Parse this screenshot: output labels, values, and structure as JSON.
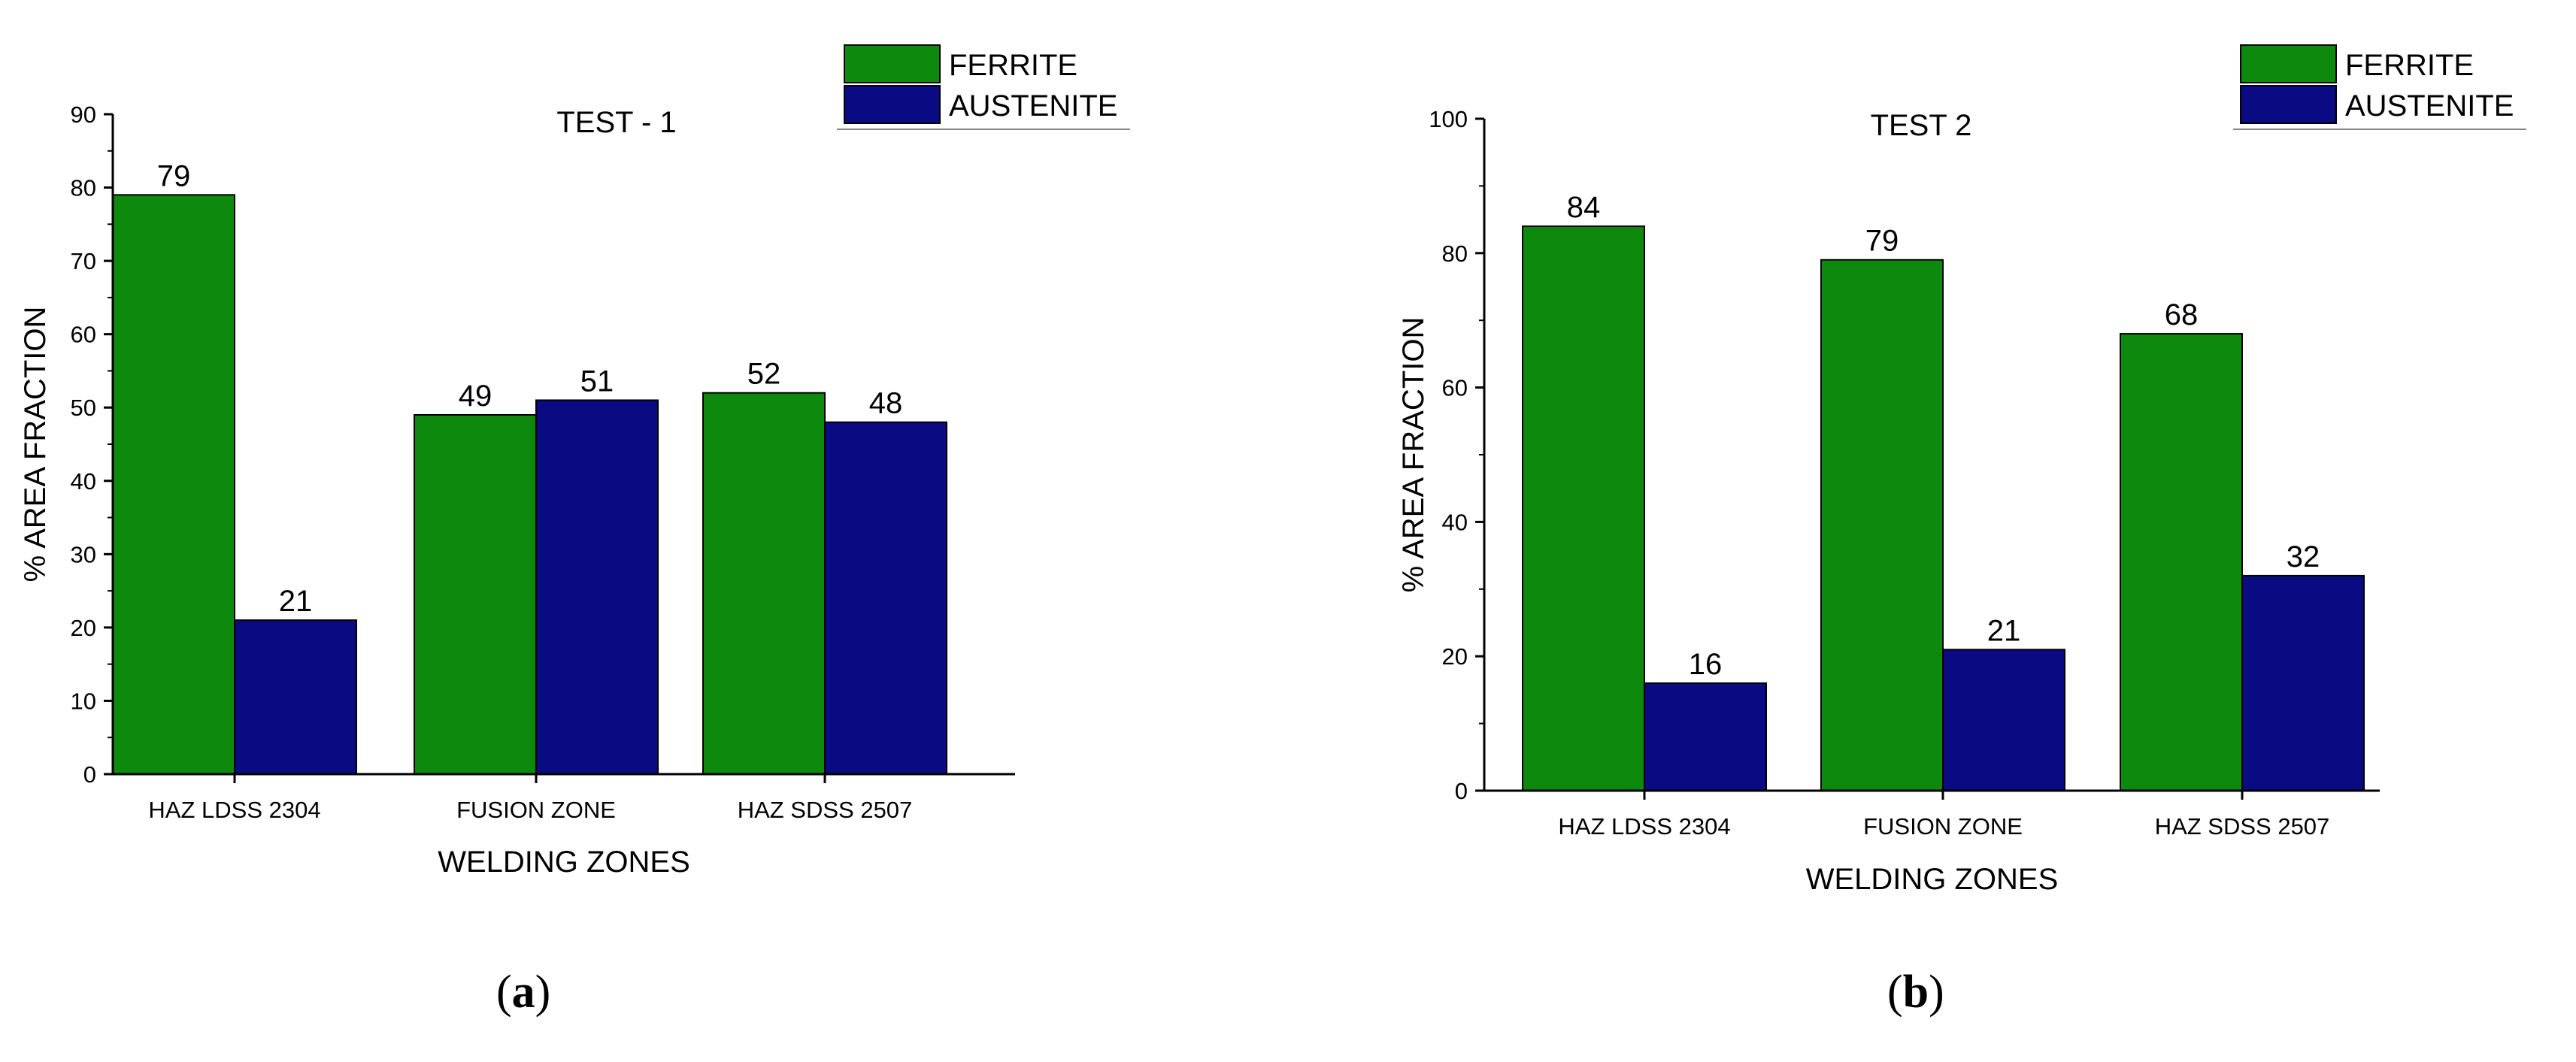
{
  "chart_data": [
    {
      "type": "bar",
      "panel_label": "a",
      "title": "TEST - 1",
      "categories": [
        "HAZ LDSS 2304",
        "FUSION ZONE",
        "HAZ SDSS 2507"
      ],
      "series": [
        {
          "name": "FERRITE",
          "color": "#0d8a0d",
          "values": [
            79,
            49,
            52
          ]
        },
        {
          "name": "AUSTENITE",
          "color": "#0a0a82",
          "values": [
            21,
            51,
            48
          ]
        }
      ],
      "xlabel": "WELDING ZONES",
      "ylabel": "% AREA FRACTION",
      "ylim": [
        0,
        90
      ],
      "yticks": [
        0,
        10,
        20,
        30,
        40,
        50,
        60,
        70,
        80,
        90
      ],
      "legend": "top-right",
      "grid": false
    },
    {
      "type": "bar",
      "panel_label": "b",
      "title": "TEST 2",
      "categories": [
        "HAZ LDSS 2304",
        "FUSION ZONE",
        "HAZ SDSS 2507"
      ],
      "series": [
        {
          "name": "FERRITE",
          "color": "#0d8a0d",
          "values": [
            84,
            79,
            68
          ]
        },
        {
          "name": "AUSTENITE",
          "color": "#0a0a82",
          "values": [
            16,
            21,
            32
          ]
        }
      ],
      "xlabel": "WELDING ZONES",
      "ylabel": "% AREA FRACTION",
      "ylim": [
        0,
        100
      ],
      "yticks": [
        0,
        20,
        40,
        60,
        80,
        100
      ],
      "legend": "top-right",
      "grid": false
    }
  ]
}
